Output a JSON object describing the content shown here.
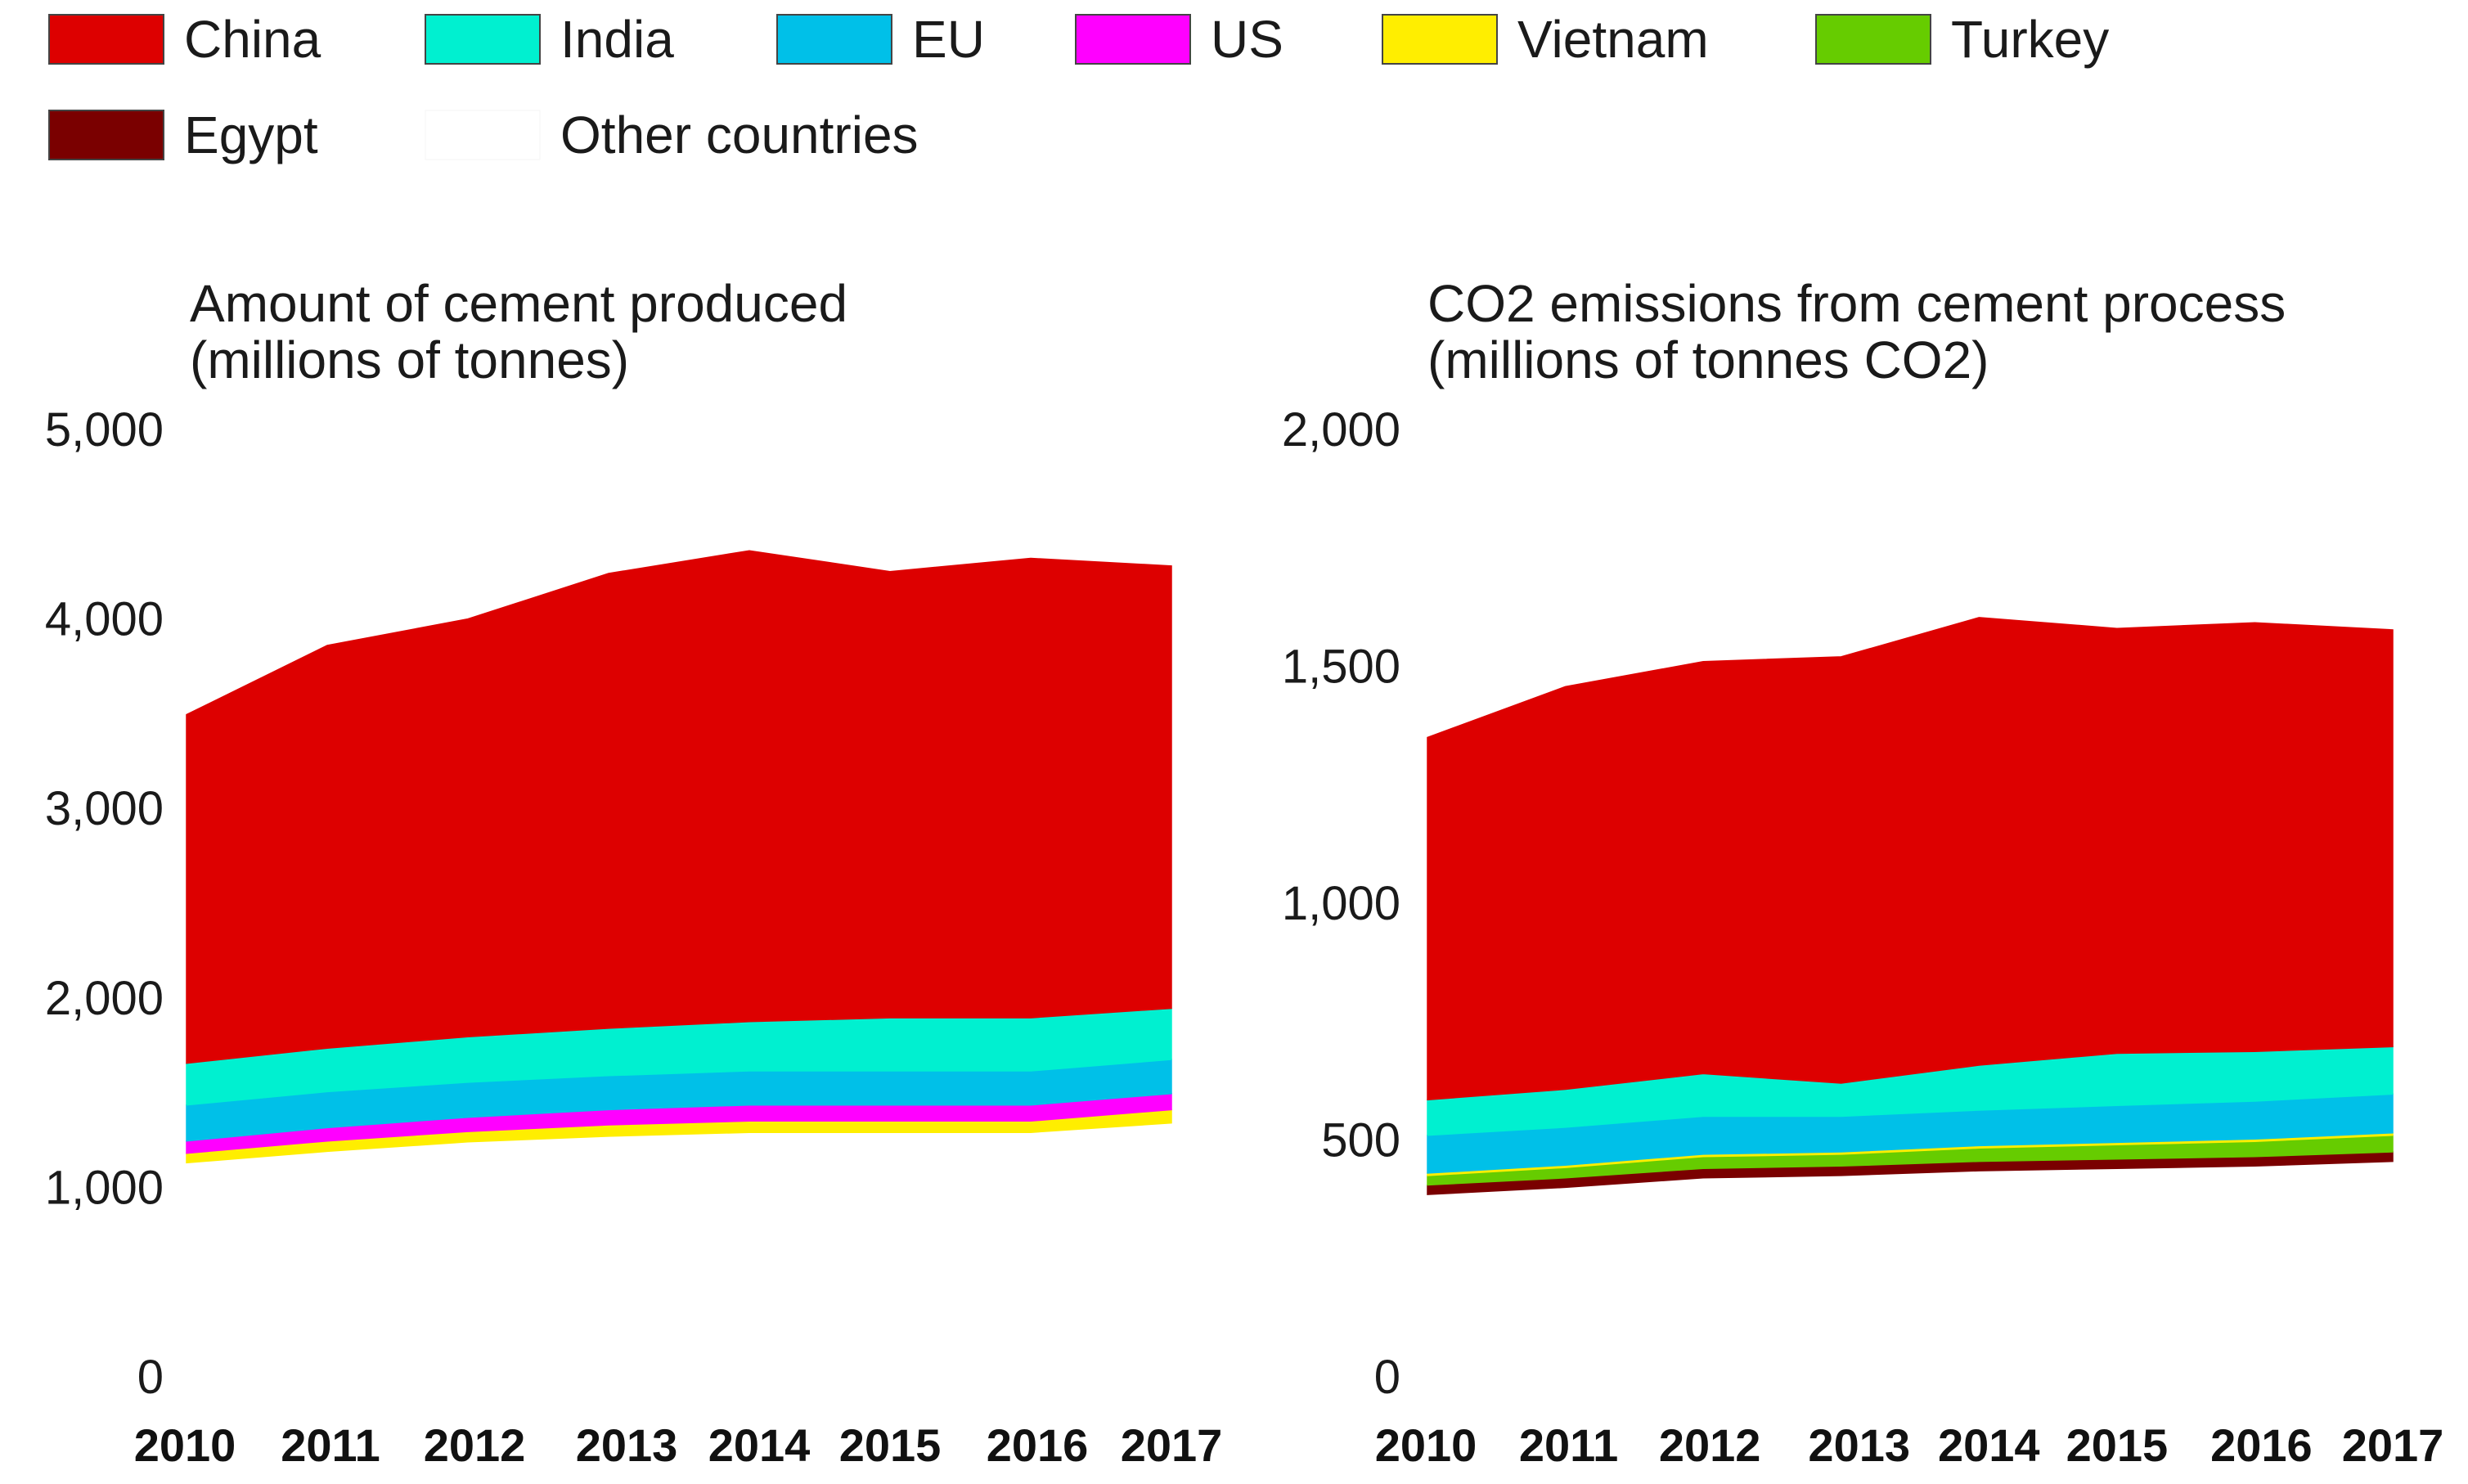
{
  "legend": [
    {
      "name": "China",
      "color": "#dd0000"
    },
    {
      "name": "India",
      "color": "#00f0d0"
    },
    {
      "name": "EU",
      "color": "#00c0e8"
    },
    {
      "name": "US",
      "color": "#ff00ff"
    },
    {
      "name": "Vietnam",
      "color": "#ffee00"
    },
    {
      "name": "Turkey",
      "color": "#66cc00"
    },
    {
      "name": "Egypt",
      "color": "#7a0000"
    },
    {
      "name": "Other countries",
      "color": "#ffffff"
    }
  ],
  "chart_data": [
    {
      "type": "area",
      "stacked": true,
      "title": "Amount of cement produced",
      "subtitle": "(millions of tonnes)",
      "x": [
        "2010",
        "2011",
        "2012",
        "2013",
        "2014",
        "2015",
        "2016",
        "2017"
      ],
      "ylim": [
        0,
        5000
      ],
      "yticks": [
        0,
        1000,
        2000,
        3000,
        4000,
        5000
      ],
      "ytick_labels": [
        "0",
        "1,000",
        "2,000",
        "3,000",
        "4,000",
        "5,000"
      ],
      "grid": false,
      "series": [
        {
          "name": "Other countries",
          "values": [
            1130,
            1190,
            1240,
            1270,
            1290,
            1290,
            1290,
            1340
          ]
        },
        {
          "name": "Vietnam",
          "values": [
            50,
            55,
            55,
            60,
            60,
            60,
            60,
            70
          ]
        },
        {
          "name": "US",
          "values": [
            65,
            70,
            75,
            80,
            85,
            85,
            85,
            85
          ]
        },
        {
          "name": "EU",
          "values": [
            190,
            190,
            185,
            180,
            180,
            180,
            180,
            180
          ]
        },
        {
          "name": "India",
          "values": [
            220,
            230,
            240,
            250,
            260,
            280,
            280,
            270
          ]
        },
        {
          "name": "China",
          "values": [
            1840,
            2125,
            2205,
            2400,
            2485,
            2355,
            2425,
            2335
          ]
        }
      ]
    },
    {
      "type": "area",
      "stacked": true,
      "title": "CO2 emissions from cement process",
      "subtitle": "(millions of tonnes CO2)",
      "x": [
        "2010",
        "2011",
        "2012",
        "2013",
        "2014",
        "2015",
        "2016",
        "2017"
      ],
      "ylim": [
        0,
        2000
      ],
      "yticks": [
        0,
        500,
        1000,
        1500,
        2000
      ],
      "ytick_labels": [
        "0",
        "500",
        "1,000",
        "1,500",
        "2,000"
      ],
      "grid": false,
      "series": [
        {
          "name": "Other countries",
          "values": [
            385,
            400,
            420,
            425,
            435,
            440,
            445,
            455
          ]
        },
        {
          "name": "Egypt",
          "values": [
            20,
            20,
            20,
            20,
            20,
            20,
            20,
            20
          ]
        },
        {
          "name": "Turkey",
          "values": [
            20,
            22,
            25,
            25,
            28,
            30,
            32,
            35
          ]
        },
        {
          "name": "Vietnam",
          "values": [
            5,
            5,
            5,
            5,
            5,
            5,
            5,
            5
          ]
        },
        {
          "name": "EU",
          "values": [
            80,
            80,
            80,
            75,
            75,
            78,
            80,
            82
          ]
        },
        {
          "name": "India",
          "values": [
            75,
            80,
            90,
            70,
            95,
            110,
            105,
            100
          ]
        },
        {
          "name": "China",
          "values": [
            765,
            850,
            870,
            900,
            945,
            897,
            905,
            880
          ]
        }
      ]
    }
  ]
}
